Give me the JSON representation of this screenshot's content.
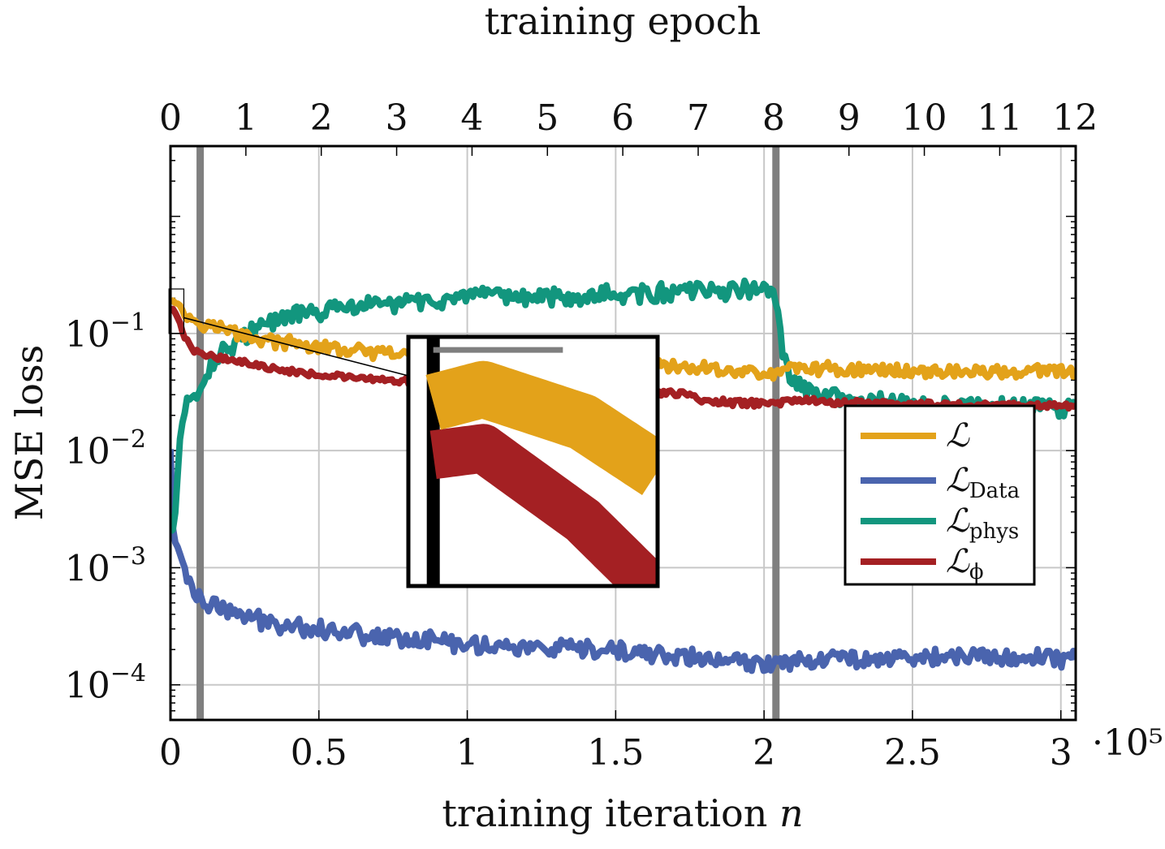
{
  "chart_data": {
    "type": "line",
    "title": "",
    "top_axis_title": "training epoch",
    "xlabel": "training iteration n",
    "xlabel_text": "training iteration ",
    "xlabel_var": "n",
    "ylabel": "MSE loss",
    "x_multiplier": "·10⁵",
    "yscale": "log",
    "xlim": [
      0,
      3.05
    ],
    "ylim_log10": [
      -4.3,
      0.6
    ],
    "grid": true,
    "x_ticks": [
      {
        "value": 0,
        "label": "0"
      },
      {
        "value": 0.5,
        "label": "0.5"
      },
      {
        "value": 1,
        "label": "1"
      },
      {
        "value": 1.5,
        "label": "1.5"
      },
      {
        "value": 2,
        "label": "2"
      },
      {
        "value": 2.5,
        "label": "2.5"
      },
      {
        "value": 3,
        "label": "3"
      }
    ],
    "epoch_ticks": [
      {
        "x": 0.0,
        "label": "0"
      },
      {
        "x": 0.254,
        "label": "1"
      },
      {
        "x": 0.508,
        "label": "2"
      },
      {
        "x": 0.762,
        "label": "3"
      },
      {
        "x": 1.016,
        "label": "4"
      },
      {
        "x": 1.27,
        "label": "5"
      },
      {
        "x": 1.524,
        "label": "6"
      },
      {
        "x": 1.778,
        "label": "7"
      },
      {
        "x": 2.032,
        "label": "8"
      },
      {
        "x": 2.286,
        "label": "9"
      },
      {
        "x": 2.54,
        "label": "10"
      },
      {
        "x": 2.794,
        "label": "11"
      },
      {
        "x": 3.048,
        "label": "12"
      }
    ],
    "y_ticks": [
      {
        "exp": -1,
        "base": "10",
        "sup": "−1"
      },
      {
        "exp": -2,
        "base": "10",
        "sup": "−2"
      },
      {
        "exp": -3,
        "base": "10",
        "sup": "−3"
      },
      {
        "exp": -4,
        "base": "10",
        "sup": "−4"
      }
    ],
    "vertical_markers": [
      0.1,
      2.04
    ],
    "series": [
      {
        "name": "L",
        "label": "ℒ",
        "subscript": "",
        "color": "#E3A21A",
        "x": [
          0,
          0.01,
          0.03,
          0.05,
          0.1,
          0.2,
          0.3,
          0.5,
          0.7,
          1.0,
          1.3,
          1.5,
          1.8,
          2.0,
          2.04,
          2.07,
          2.1,
          2.3,
          2.5,
          2.8,
          3.05
        ],
        "log10": [
          -0.72,
          -0.7,
          -0.75,
          -0.85,
          -0.9,
          -0.98,
          -1.05,
          -1.12,
          -1.17,
          -1.22,
          -1.25,
          -1.27,
          -1.3,
          -1.34,
          -1.36,
          -1.3,
          -1.29,
          -1.31,
          -1.32,
          -1.33,
          -1.32
        ],
        "noise": 0.05
      },
      {
        "name": "L_Data",
        "label": "ℒ",
        "subscript": "Data",
        "color": "#4A64AE",
        "x": [
          0,
          0.005,
          0.01,
          0.02,
          0.04,
          0.06,
          0.09,
          0.12,
          0.2,
          0.3,
          0.5,
          0.7,
          1.0,
          1.3,
          1.6,
          1.8,
          2.0,
          2.04,
          2.1,
          2.3,
          2.6,
          3.05
        ],
        "log10": [
          -2.0,
          -2.6,
          -2.7,
          -2.8,
          -2.95,
          -3.1,
          -3.25,
          -3.3,
          -3.38,
          -3.45,
          -3.52,
          -3.58,
          -3.65,
          -3.7,
          -3.73,
          -3.78,
          -3.83,
          -3.8,
          -3.78,
          -3.77,
          -3.76,
          -3.77
        ],
        "noise": 0.07
      },
      {
        "name": "L_phys",
        "label": "ℒ",
        "subscript": "phys",
        "color": "#12967E",
        "x": [
          0,
          0.01,
          0.02,
          0.03,
          0.05,
          0.08,
          0.1,
          0.14,
          0.2,
          0.3,
          0.4,
          0.6,
          0.8,
          1.0,
          1.3,
          1.6,
          1.8,
          2.0,
          2.03,
          2.05,
          2.06,
          2.09,
          2.15,
          2.3,
          2.6,
          3.05
        ],
        "log10": [
          -2.7,
          -2.7,
          -2.4,
          -1.9,
          -1.65,
          -1.55,
          -1.45,
          -1.25,
          -1.1,
          -0.95,
          -0.85,
          -0.78,
          -0.73,
          -0.7,
          -0.68,
          -0.66,
          -0.64,
          -0.62,
          -0.62,
          -0.9,
          -1.15,
          -1.4,
          -1.5,
          -1.58,
          -1.63,
          -1.63
        ],
        "noise": 0.07
      },
      {
        "name": "L_phi",
        "label": "ℒ",
        "subscript": "ϕ",
        "color": "#A42023",
        "x": [
          0,
          0.01,
          0.03,
          0.05,
          0.07,
          0.1,
          0.2,
          0.3,
          0.5,
          0.7,
          1.0,
          1.3,
          1.6,
          1.75,
          1.8,
          2.0,
          2.1,
          2.4,
          2.7,
          3.05
        ],
        "log10": [
          -0.8,
          -0.79,
          -0.9,
          -1.05,
          -1.13,
          -1.17,
          -1.22,
          -1.28,
          -1.35,
          -1.4,
          -1.44,
          -1.47,
          -1.5,
          -1.52,
          -1.58,
          -1.6,
          -1.57,
          -1.6,
          -1.61,
          -1.62
        ],
        "noise": 0.025
      }
    ],
    "inset": {
      "x_range": [
        -0.005,
        0.045
      ],
      "log10_range": [
        -1.0,
        -0.62
      ]
    }
  }
}
